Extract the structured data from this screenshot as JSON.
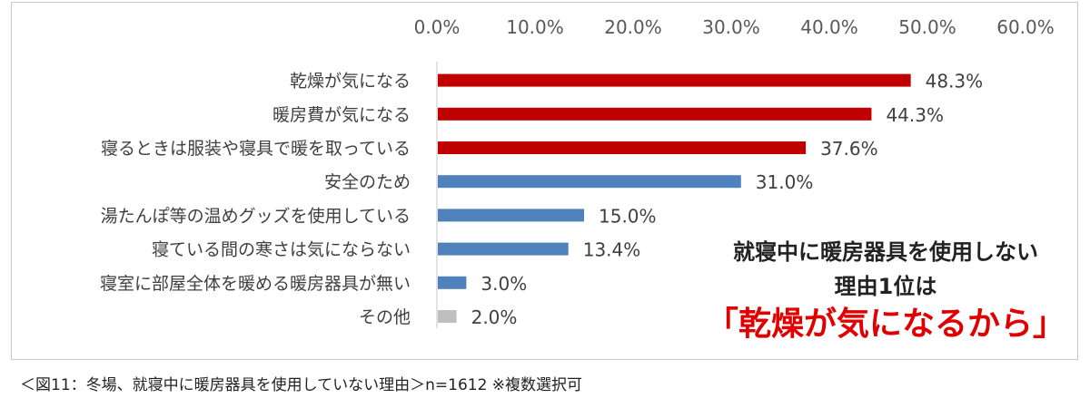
{
  "chart_data": {
    "type": "bar",
    "orientation": "horizontal",
    "categories": [
      "乾燥が気になる",
      "暖房費が気になる",
      "寝るときは服装や寝具で暖を取っている",
      "安全のため",
      "湯たんぽ等の温めグッズを使用している",
      "寝ている間の寒さは気にならない",
      "寝室に部屋全体を暖める暖房器具が無い",
      "その他"
    ],
    "values": [
      48.3,
      44.3,
      37.6,
      31.0,
      15.0,
      13.4,
      3.0,
      2.0
    ],
    "data_labels": [
      "48.3%",
      "44.3%",
      "37.6%",
      "31.0%",
      "15.0%",
      "13.4%",
      "3.0%",
      "2.0%"
    ],
    "bar_colors": [
      "#c00000",
      "#c00000",
      "#c00000",
      "#4f81bd",
      "#4f81bd",
      "#4f81bd",
      "#4f81bd",
      "#bfbfbf"
    ],
    "xlim": [
      0,
      60
    ],
    "x_ticks": [
      "0.0%",
      "10.0%",
      "20.0%",
      "30.0%",
      "40.0%",
      "50.0%",
      "60.0%"
    ],
    "x_tick_values": [
      0,
      10,
      20,
      30,
      40,
      50,
      60
    ],
    "xaxis_position": "top",
    "grid": false,
    "title": "",
    "xlabel": "",
    "ylabel": ""
  },
  "annotation": {
    "line1": "就寝中に暖房器具を使用しない",
    "line2": "理由1位は",
    "line3": "「乾燥が気になるから」"
  },
  "caption": "＜図11：冬場、就寝中に暖房器具を使用していない理由＞n=1612 ※複数選択可"
}
